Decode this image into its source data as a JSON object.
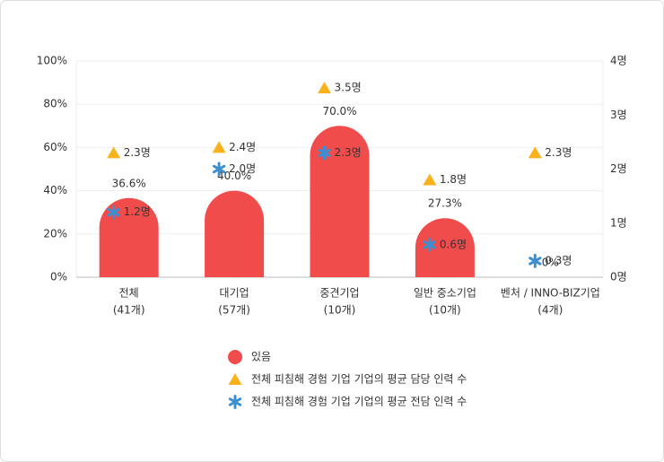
{
  "chart_data": {
    "type": "bar",
    "categories": [
      "전체",
      "대기업",
      "중견기업",
      "일반 중소기업",
      "벤처 / INNO-BIZ기업"
    ],
    "category_counts": [
      "(41개)",
      "(57개)",
      "(10개)",
      "(10개)",
      "(4개)"
    ],
    "series": [
      {
        "name": "있음",
        "color": "#f04c4c",
        "marker": "bar",
        "values": [
          36.6,
          40.0,
          70.0,
          27.3,
          0
        ],
        "value_labels": [
          "36.6%",
          "40.0%",
          "70.0%",
          "27.3%",
          "0%"
        ]
      },
      {
        "name": "전체 피침해 경험 기업 기업의 평균 담당 인력 수",
        "color": "#f9b21c",
        "marker": "triangle",
        "axis": "y2",
        "values": [
          2.3,
          2.4,
          3.5,
          1.8,
          2.3
        ],
        "value_labels": [
          "2.3명",
          "2.4명",
          "3.5명",
          "1.8명",
          "2.3명"
        ]
      },
      {
        "name": "전체 피침해 경험 기업 기업의 평균 전담 인력 수",
        "color": "#3c8fd1",
        "marker": "star",
        "axis": "y2",
        "values": [
          1.2,
          2.0,
          2.3,
          0.6,
          0.3
        ],
        "value_labels": [
          "1.2명",
          "2.0명",
          "2.3명",
          "0.6명",
          "0.3명"
        ]
      }
    ],
    "ylim": [
      0,
      100
    ],
    "yticks": [
      {
        "value": 0,
        "label": "0%"
      },
      {
        "value": 20,
        "label": "20%"
      },
      {
        "value": 40,
        "label": "40%"
      },
      {
        "value": 60,
        "label": "60%"
      },
      {
        "value": 80,
        "label": "80%"
      },
      {
        "value": 100,
        "label": "100%"
      }
    ],
    "y2lim": [
      0,
      4
    ],
    "y2ticks": [
      {
        "value": 0,
        "label": "0명"
      },
      {
        "value": 1,
        "label": "1명"
      },
      {
        "value": 2,
        "label": "2명"
      },
      {
        "value": 3,
        "label": "3명"
      },
      {
        "value": 4,
        "label": "4명"
      }
    ],
    "grid": true
  }
}
